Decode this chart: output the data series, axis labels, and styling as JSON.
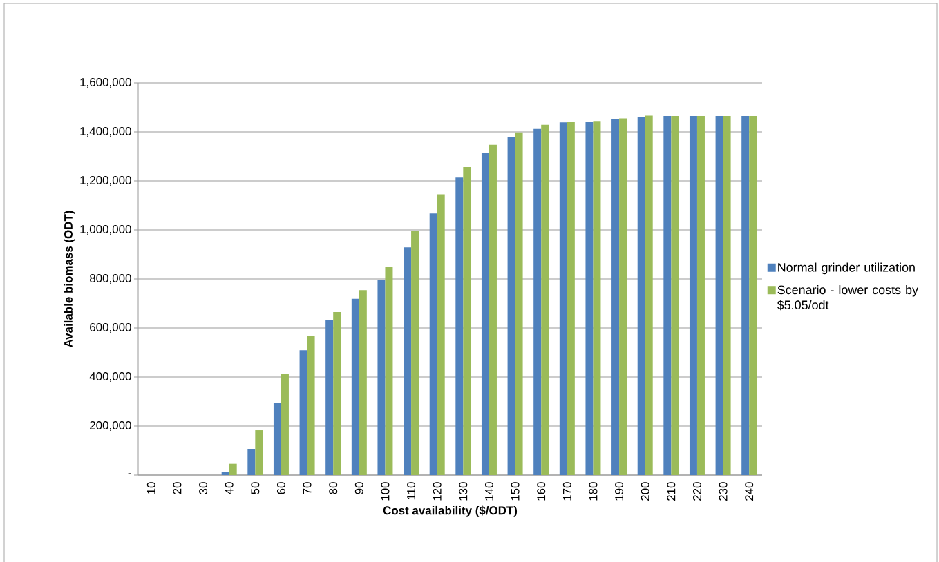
{
  "chart_data": {
    "type": "bar",
    "xlabel": "Cost availability ($/ODT)",
    "ylabel": "Available biomass (ODT)",
    "categories": [
      "10",
      "20",
      "30",
      "40",
      "50",
      "60",
      "70",
      "80",
      "90",
      "100",
      "110",
      "120",
      "130",
      "140",
      "150",
      "160",
      "170",
      "180",
      "190",
      "200",
      "210",
      "220",
      "230",
      "240"
    ],
    "series": [
      {
        "name": "Normal grinder utilization",
        "color": "#4f81bd",
        "values": [
          0,
          0,
          0,
          12000,
          106000,
          295000,
          509000,
          634000,
          719000,
          795000,
          929000,
          1067000,
          1213000,
          1315000,
          1380000,
          1412000,
          1439000,
          1442000,
          1453000,
          1459000,
          1465000,
          1465000,
          1465000,
          1465000
        ]
      },
      {
        "name": "Scenario - lower costs by $5.05/odt",
        "color": "#9bbb59",
        "values": [
          0,
          0,
          0,
          46000,
          183000,
          414000,
          569000,
          665000,
          754000,
          851000,
          996000,
          1145000,
          1256000,
          1347000,
          1398000,
          1429000,
          1441000,
          1444000,
          1455000,
          1466000,
          1465000,
          1465000,
          1465000,
          1465000
        ]
      }
    ],
    "ylim": [
      0,
      1600000
    ],
    "yticks": [
      {
        "value": 0,
        "label": "-"
      },
      {
        "value": 200000,
        "label": "200,000"
      },
      {
        "value": 400000,
        "label": "400,000"
      },
      {
        "value": 600000,
        "label": "600,000"
      },
      {
        "value": 800000,
        "label": "800,000"
      },
      {
        "value": 1000000,
        "label": "1,000,000"
      },
      {
        "value": 1200000,
        "label": "1,200,000"
      },
      {
        "value": 1400000,
        "label": "1,400,000"
      },
      {
        "value": 1600000,
        "label": "1,600,000"
      }
    ],
    "grid": "y",
    "legend": "right"
  }
}
